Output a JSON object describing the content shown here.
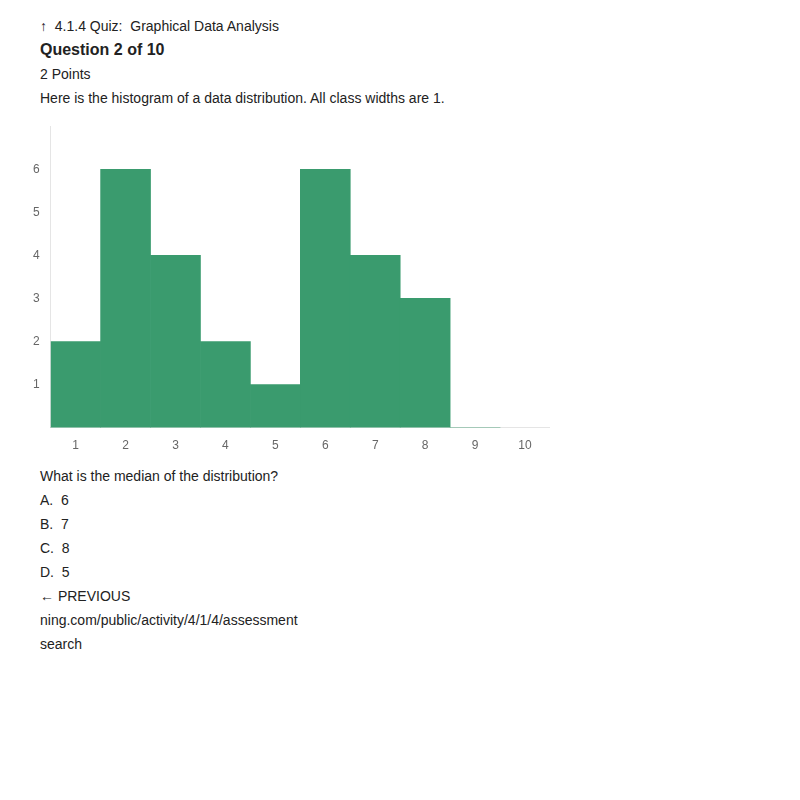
{
  "chart_data": {
    "type": "bar",
    "annotations": [
      "↑  4.1.4 Quiz:  Graphical Data Analysis",
      "Question 2 of 10",
      "2 Points",
      "Here is the histogram of a data distribution. All class widths are 1.",
      "What is the median of the distribution?",
      "A.  6",
      "B.  7",
      "C.  8",
      "D.  5",
      "← PREVIOUS",
      "ning.com/public/activity/4/1/4/assessment",
      "search"
    ],
    "x": [
      1,
      2,
      3,
      4,
      5,
      6,
      7,
      8,
      9
    ],
    "values": [
      2,
      6,
      4,
      2,
      1,
      6,
      4,
      3,
      0
    ],
    "color": "#3a9b6e",
    "xlim": [
      0.5,
      10.5
    ],
    "xticks": [
      1,
      2,
      3,
      4,
      5,
      6,
      7,
      8,
      9,
      10
    ],
    "ylim": [
      0,
      7
    ],
    "yticks": [
      1,
      2,
      3,
      4,
      5,
      6
    ],
    "grid": false
  }
}
